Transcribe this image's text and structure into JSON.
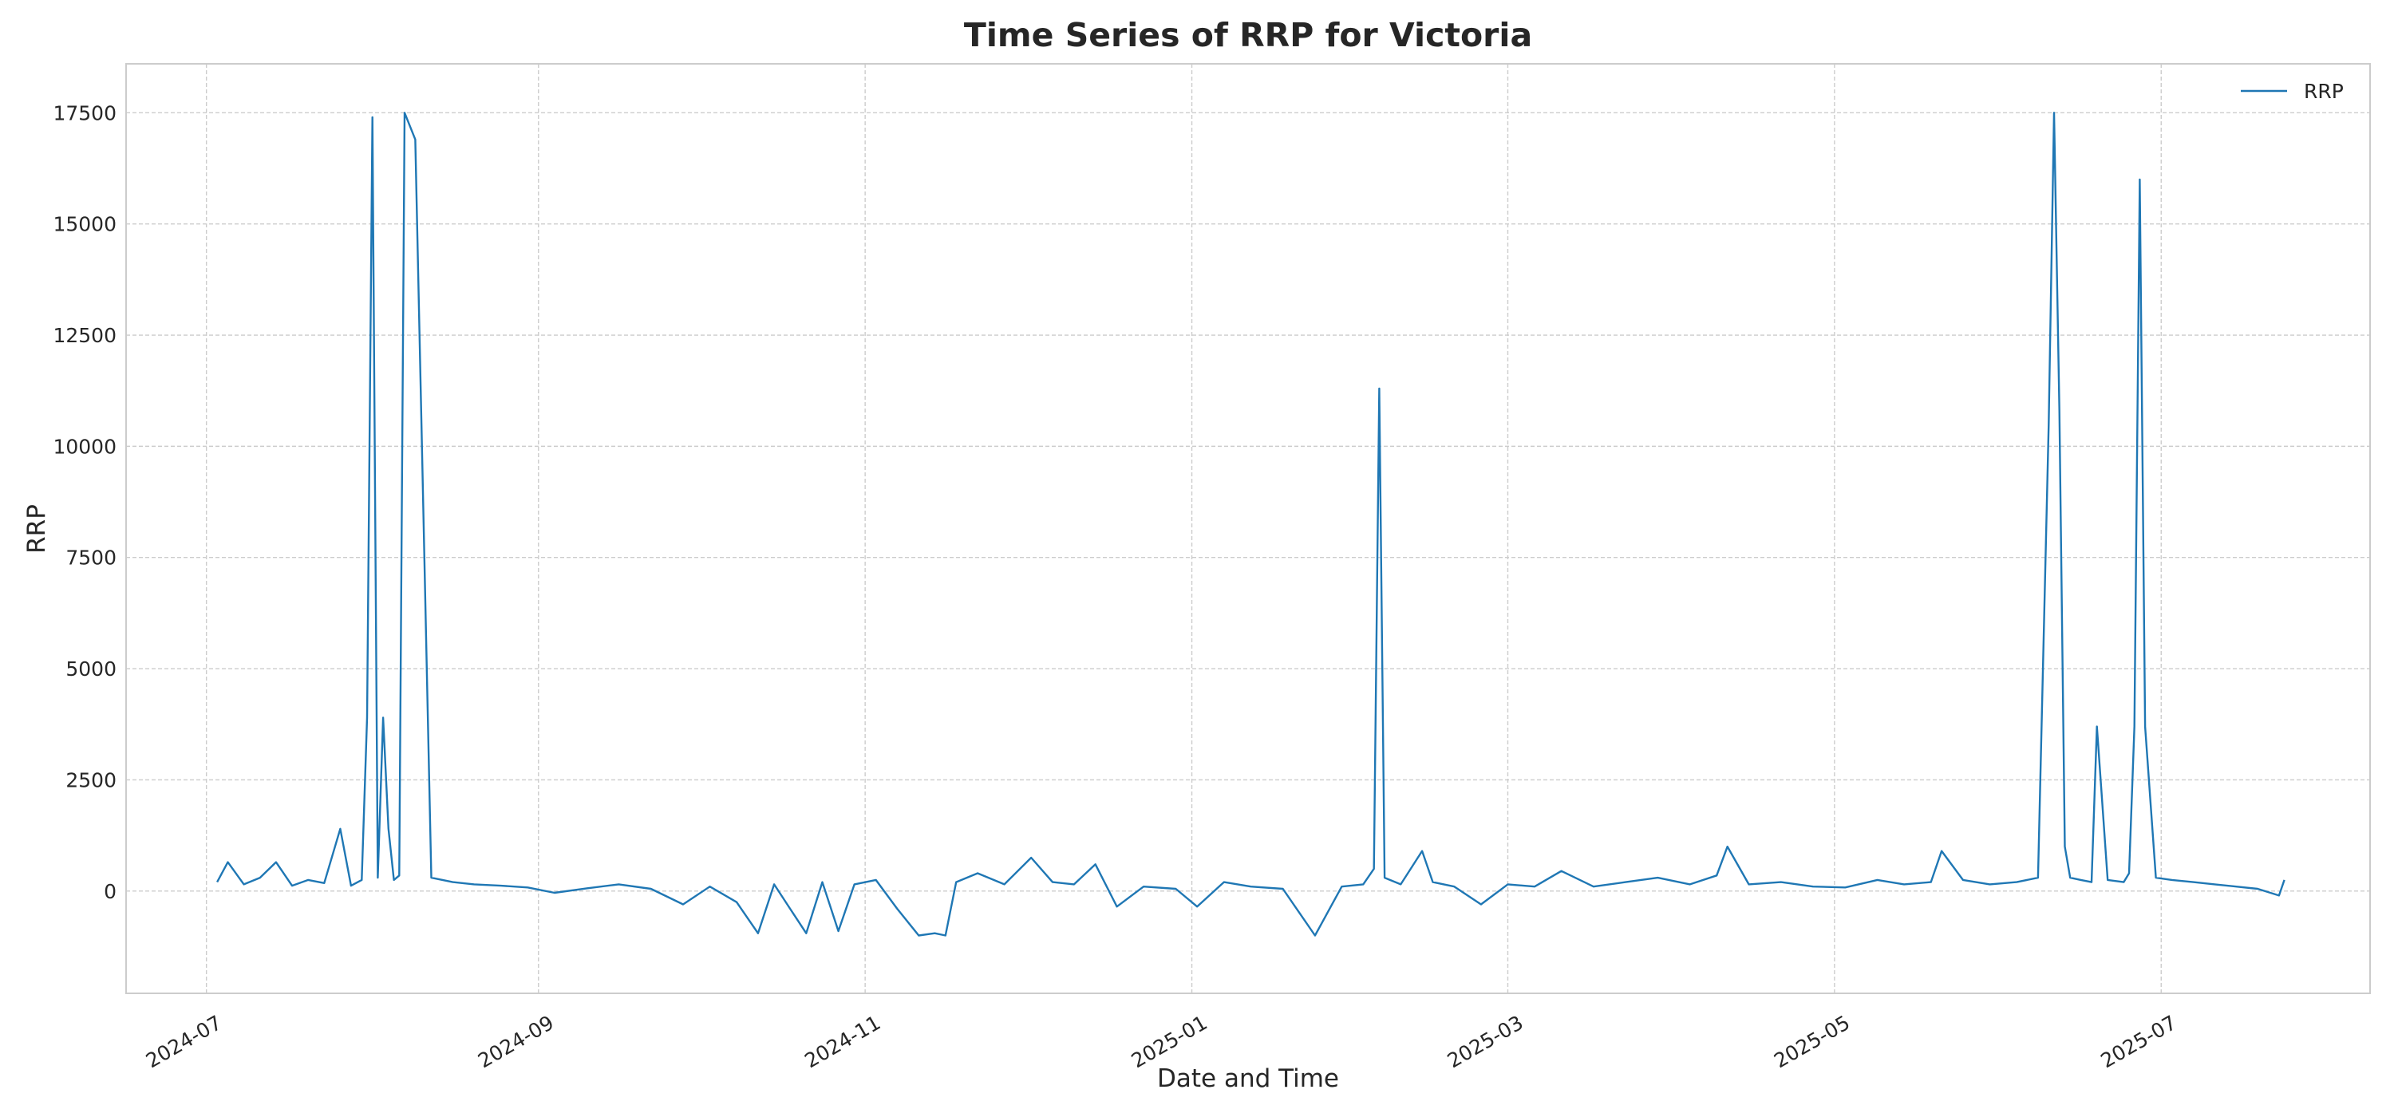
{
  "chart_data": {
    "type": "line",
    "title": "Time Series of RRP for Victoria",
    "xlabel": "Date and Time",
    "ylabel": "RRP",
    "x_range": [
      "2024-06-16",
      "2025-08-09"
    ],
    "ylim": [
      -2300,
      18600
    ],
    "grid": true,
    "legend_position": "top-right",
    "x_ticks": [
      "2024-07",
      "2024-09",
      "2024-11",
      "2025-01",
      "2025-03",
      "2025-05",
      "2025-07"
    ],
    "y_ticks": [
      0,
      2500,
      5000,
      7500,
      10000,
      12500,
      15000,
      17500
    ],
    "y_tick_labels": [
      "0",
      "2500",
      "5000",
      "7500",
      "10000",
      "12500",
      "15000",
      "17500"
    ],
    "series": [
      {
        "name": "RRP",
        "color": "#1f77b4",
        "x": [
          "2024-07-03",
          "2024-07-05",
          "2024-07-08",
          "2024-07-11",
          "2024-07-14",
          "2024-07-17",
          "2024-07-20",
          "2024-07-23",
          "2024-07-26",
          "2024-07-28",
          "2024-07-30",
          "2024-07-31",
          "2024-08-01",
          "2024-08-02",
          "2024-08-03",
          "2024-08-04",
          "2024-08-05",
          "2024-08-06",
          "2024-08-07",
          "2024-08-09",
          "2024-08-12",
          "2024-08-16",
          "2024-08-20",
          "2024-08-25",
          "2024-08-30",
          "2024-09-04",
          "2024-09-10",
          "2024-09-16",
          "2024-09-22",
          "2024-09-28",
          "2024-10-03",
          "2024-10-08",
          "2024-10-12",
          "2024-10-15",
          "2024-10-18",
          "2024-10-21",
          "2024-10-24",
          "2024-10-27",
          "2024-10-30",
          "2024-11-03",
          "2024-11-07",
          "2024-11-11",
          "2024-11-14",
          "2024-11-16",
          "2024-11-18",
          "2024-11-22",
          "2024-11-27",
          "2024-12-02",
          "2024-12-06",
          "2024-12-10",
          "2024-12-14",
          "2024-12-18",
          "2024-12-23",
          "2024-12-29",
          "2025-01-02",
          "2025-01-07",
          "2025-01-12",
          "2025-01-18",
          "2025-01-24",
          "2025-01-29",
          "2025-02-02",
          "2025-02-04",
          "2025-02-05",
          "2025-02-06",
          "2025-02-09",
          "2025-02-13",
          "2025-02-15",
          "2025-02-19",
          "2025-02-24",
          "2025-03-01",
          "2025-03-06",
          "2025-03-11",
          "2025-03-17",
          "2025-03-23",
          "2025-03-29",
          "2025-04-04",
          "2025-04-09",
          "2025-04-11",
          "2025-04-15",
          "2025-04-21",
          "2025-04-27",
          "2025-05-03",
          "2025-05-09",
          "2025-05-14",
          "2025-05-19",
          "2025-05-21",
          "2025-05-25",
          "2025-05-30",
          "2025-06-04",
          "2025-06-08",
          "2025-06-10",
          "2025-06-11",
          "2025-06-12",
          "2025-06-13",
          "2025-06-14",
          "2025-06-16",
          "2025-06-18",
          "2025-06-19",
          "2025-06-21",
          "2025-06-24",
          "2025-06-25",
          "2025-06-26",
          "2025-06-27",
          "2025-06-28",
          "2025-06-30",
          "2025-07-03",
          "2025-07-07",
          "2025-07-11",
          "2025-07-15",
          "2025-07-19",
          "2025-07-23",
          "2025-07-24"
        ],
        "y": [
          200,
          650,
          150,
          300,
          650,
          120,
          250,
          180,
          1400,
          120,
          250,
          3900,
          17400,
          300,
          3900,
          1400,
          250,
          350,
          17500,
          16900,
          300,
          200,
          150,
          120,
          80,
          -40,
          60,
          150,
          50,
          -300,
          100,
          -250,
          -950,
          150,
          -400,
          -950,
          200,
          -900,
          150,
          250,
          -400,
          -1000,
          -950,
          -1000,
          200,
          400,
          150,
          750,
          200,
          150,
          600,
          -350,
          100,
          50,
          -350,
          200,
          100,
          50,
          -1000,
          100,
          150,
          500,
          11300,
          300,
          150,
          900,
          200,
          100,
          -300,
          150,
          100,
          450,
          100,
          200,
          300,
          150,
          350,
          1000,
          150,
          200,
          100,
          80,
          250,
          150,
          200,
          900,
          250,
          150,
          200,
          300,
          10500,
          17500,
          10800,
          1000,
          300,
          250,
          200,
          3700,
          250,
          200,
          400,
          3700,
          16000,
          3700,
          300,
          250,
          200,
          150,
          100,
          50,
          -100,
          250
        ]
      }
    ]
  }
}
